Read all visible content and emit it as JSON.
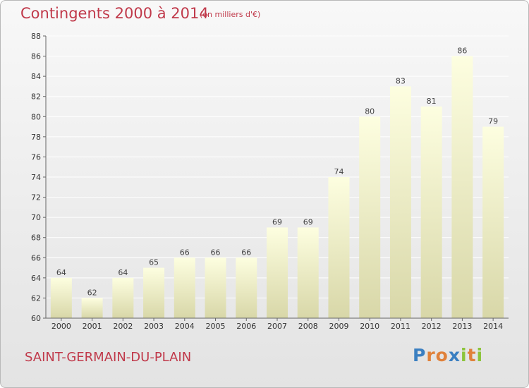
{
  "title": "Contingents 2000 à 2014",
  "subtitle": "(en milliers d'€)",
  "commune": "SAINT-GERMAIN-DU-PLAIN",
  "brand": {
    "letters": [
      "P",
      "r",
      "o",
      "x",
      "i",
      "t",
      "i"
    ],
    "colors": [
      "#3a7fc1",
      "#e0813a",
      "#e0813a",
      "#3a7fc1",
      "#8cc43a",
      "#e0813a",
      "#8cc43a"
    ]
  },
  "colors": {
    "title": "#c0394a",
    "bar_top": "#fdfee0",
    "bar_bottom": "#d8d7a8"
  },
  "chart_data": {
    "type": "bar",
    "categories": [
      "2000",
      "2001",
      "2002",
      "2003",
      "2004",
      "2005",
      "2006",
      "2007",
      "2008",
      "2009",
      "2010",
      "2011",
      "2012",
      "2013",
      "2014"
    ],
    "values": [
      64,
      62,
      64,
      65,
      66,
      66,
      66,
      69,
      69,
      74,
      80,
      83,
      81,
      86,
      79
    ],
    "ylim": [
      60,
      88
    ],
    "yticks": [
      60,
      62,
      64,
      66,
      68,
      70,
      72,
      74,
      76,
      78,
      80,
      82,
      84,
      86,
      88
    ],
    "grid": true,
    "title": "Contingents 2000 à 2014",
    "xlabel": "",
    "ylabel": ""
  }
}
